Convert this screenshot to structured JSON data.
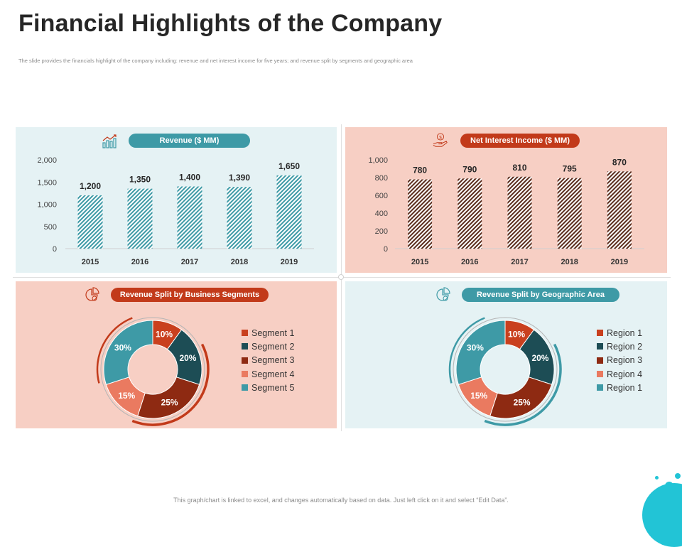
{
  "page": {
    "title": "Financial Highlights of the Company",
    "subtitle": "The slide provides the financials highlight of the company including: revenue and net interest income for five years; and revenue split by segments and geographic area",
    "footer": "This graph/chart is linked to excel, and changes automatically based on data. Just left click on it and select “Edit Data”."
  },
  "colors": {
    "teal": "#3e9aa6",
    "red": "#c23a1a",
    "dark_teal": "#1d4d55",
    "dark_red": "#8e2a12",
    "salmon": "#ea7a60",
    "light_teal_bg": "#e5f2f4",
    "light_salmon_bg": "#f7cfc4"
  },
  "icons": {
    "revenue": "bar-chart-growth-icon",
    "net_interest": "hand-dollar-coin-icon",
    "segments": "pie-chart-icon",
    "geographic": "pie-chart-icon"
  },
  "chart_data": [
    {
      "id": "revenue",
      "type": "bar",
      "title": "Revenue ($ MM)",
      "categories": [
        "2015",
        "2016",
        "2017",
        "2018",
        "2019"
      ],
      "values": [
        1200,
        1350,
        1400,
        1390,
        1650
      ],
      "value_labels": [
        "1,200",
        "1,350",
        "1,400",
        "1,390",
        "1,650"
      ],
      "yticks": [
        "0",
        "500",
        "1,000",
        "1,500",
        "2,000"
      ],
      "ylim": [
        0,
        2000
      ],
      "grid": false,
      "color": "#3e9aa6",
      "pattern": "diagonal-stripes"
    },
    {
      "id": "net_interest_income",
      "type": "bar",
      "title": "Net Interest Income ($ MM)",
      "categories": [
        "2015",
        "2016",
        "2017",
        "2018",
        "2019"
      ],
      "values": [
        780,
        790,
        810,
        795,
        870
      ],
      "value_labels": [
        "780",
        "790",
        "810",
        "795",
        "870"
      ],
      "yticks": [
        "0",
        "200",
        "400",
        "600",
        "800",
        "1,000"
      ],
      "ylim": [
        0,
        1000
      ],
      "grid": false,
      "color": "#5a2c1c",
      "pattern": "diagonal-stripes"
    },
    {
      "id": "segments",
      "type": "pie",
      "donut": true,
      "title": "Revenue Split by Business Segments",
      "labels": [
        "Segment 1",
        "Segment 2",
        "Segment 3",
        "Segment 4",
        "Segment 5"
      ],
      "values": [
        10,
        20,
        25,
        15,
        30
      ],
      "value_labels": [
        "10%",
        "20%",
        "25%",
        "15%",
        "30%"
      ],
      "colors": [
        "#c9401e",
        "#1d4d55",
        "#8e2a12",
        "#ea7a60",
        "#3e9aa6"
      ],
      "legend": "right",
      "arc_color": "#c23a1a"
    },
    {
      "id": "geographic",
      "type": "pie",
      "donut": true,
      "title": "Revenue Split by Geographic Area",
      "labels": [
        "Region 1",
        "Region 2",
        "Region 3",
        "Region 4",
        "Region 1"
      ],
      "values": [
        10,
        20,
        25,
        15,
        30
      ],
      "value_labels": [
        "10%",
        "20%",
        "25%",
        "15%",
        "30%"
      ],
      "colors": [
        "#c9401e",
        "#1d4d55",
        "#8e2a12",
        "#ea7a60",
        "#3e9aa6"
      ],
      "legend": "right",
      "arc_color": "#3e9aa6"
    }
  ]
}
